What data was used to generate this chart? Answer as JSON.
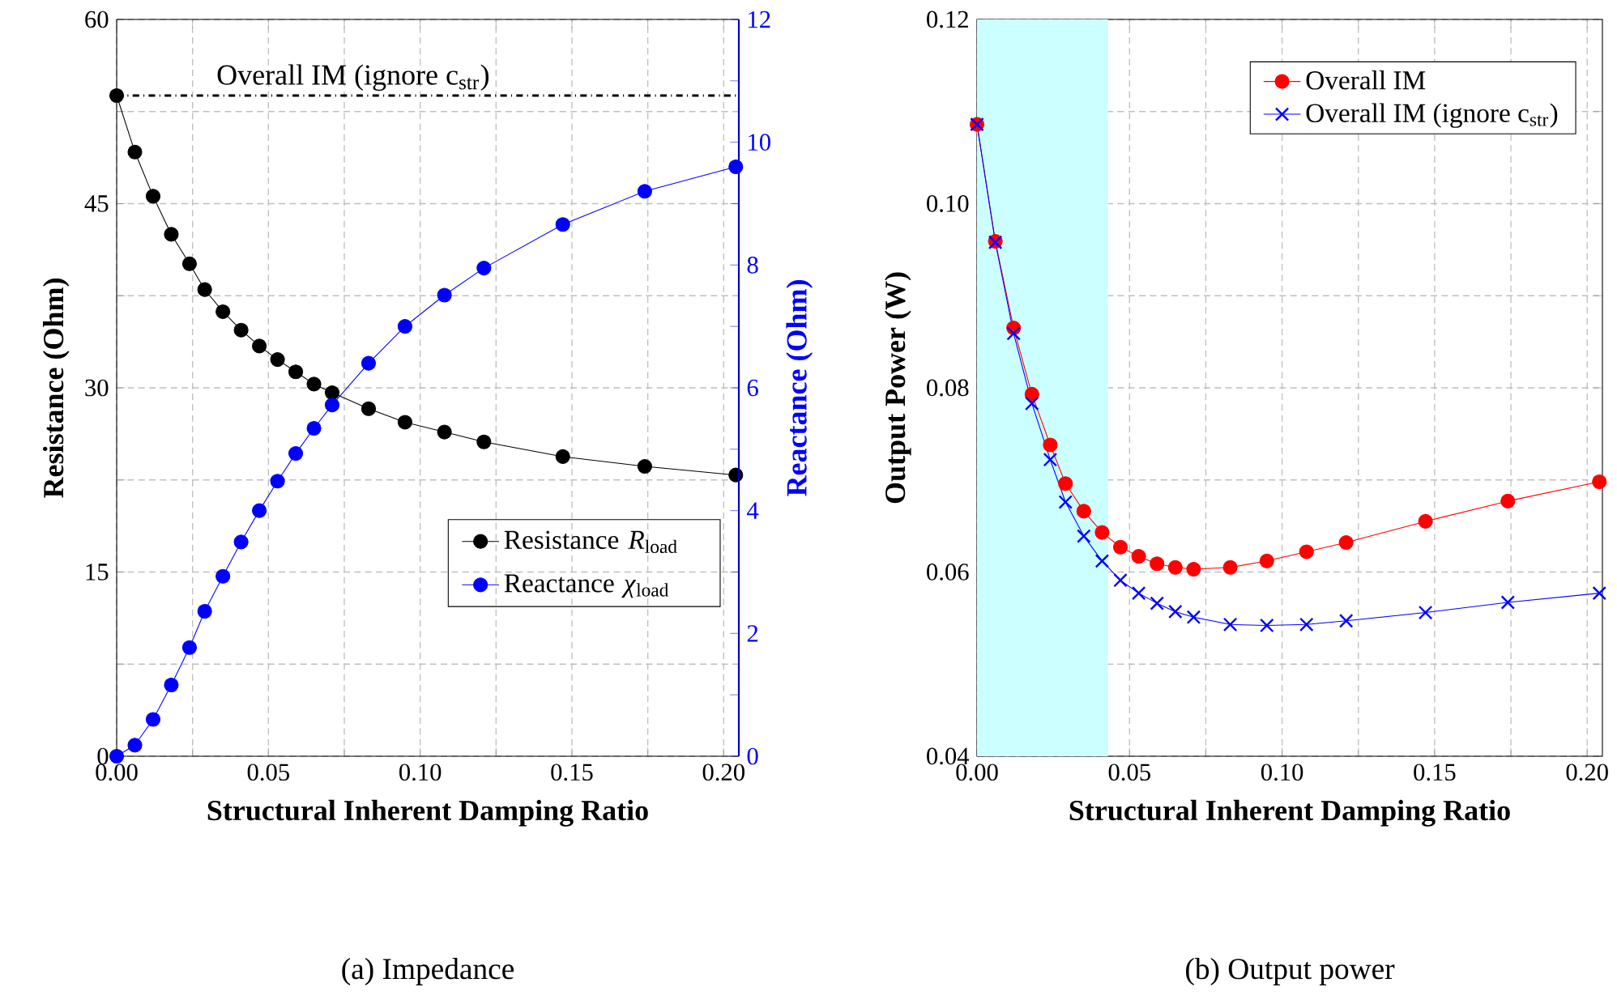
{
  "chart_data": [
    {
      "type": "line",
      "title": "(a) Impedance",
      "xlabel": "Structural Inherent Damping Ratio",
      "ylabel": "Resistance (Ohm)",
      "y2label": "Reactance (Ohm)",
      "x": [
        0,
        0.006,
        0.012,
        0.018,
        0.024,
        0.029,
        0.035,
        0.041,
        0.047,
        0.053,
        0.059,
        0.065,
        0.071,
        0.083,
        0.095,
        0.108,
        0.121,
        0.147,
        0.174,
        0.204
      ],
      "xlim": [
        0,
        0.205
      ],
      "xticks": [
        {
          "value": 0,
          "label": "0.00"
        },
        {
          "value": 0.025,
          "label": null
        },
        {
          "value": 0.05,
          "label": "0.05"
        },
        {
          "value": 0.075,
          "label": null
        },
        {
          "value": 0.1,
          "label": "0.10"
        },
        {
          "value": 0.125,
          "label": null
        },
        {
          "value": 0.15,
          "label": "0.15"
        },
        {
          "value": 0.175,
          "label": null
        },
        {
          "value": 0.2,
          "label": "0.20"
        }
      ],
      "ylim": [
        0,
        60
      ],
      "yticks": [
        0,
        {
          "value": 7.5,
          "label": null
        },
        15,
        {
          "value": 22.5,
          "label": null
        },
        30,
        {
          "value": 37.5,
          "label": null
        },
        45,
        {
          "value": 52.5,
          "label": null
        },
        60
      ],
      "y2lim": [
        0,
        12
      ],
      "y2ticks": [
        0,
        {
          "value": 1,
          "label": null
        },
        2,
        {
          "value": 3,
          "label": null
        },
        4,
        {
          "value": 5,
          "label": null
        },
        6,
        {
          "value": 7,
          "label": null
        },
        8,
        {
          "value": 9,
          "label": null
        },
        10,
        {
          "value": 11,
          "label": null
        },
        12
      ],
      "grid": true,
      "legend": "bottom right",
      "line_style": "solid",
      "series": [
        {
          "name": "Resistance *R*$_{load}$",
          "color": "#000000",
          "marker": "circle",
          "values": [
            53.8,
            49.2,
            45.6,
            42.5,
            40.1,
            38.0,
            36.2,
            34.7,
            33.4,
            32.3,
            31.3,
            30.3,
            29.6,
            28.3,
            27.2,
            26.4,
            25.6,
            24.4,
            23.6,
            22.9
          ]
        },
        {
          "name": "Reactance *χ*$_{load}$",
          "color": "#0000ff",
          "marker": "circle",
          "axis": "y2",
          "values": [
            0,
            0.18,
            0.6,
            1.16,
            1.77,
            2.36,
            2.93,
            3.49,
            4.0,
            4.48,
            4.93,
            5.34,
            5.72,
            6.4,
            7.0,
            7.51,
            7.95,
            8.66,
            9.2,
            9.6
          ]
        }
      ],
      "ref_lines": [
        {
          "axis": "y",
          "value": 53.8,
          "label": "Overall IM (ignore c$_{str}$)",
          "color": "#000000",
          "line_style": "dashdot"
        }
      ]
    },
    {
      "type": "line",
      "title": "(b) Output power",
      "xlabel": "Structural Inherent Damping Ratio",
      "ylabel": "Output Power (W)",
      "x": [
        0,
        0.006,
        0.012,
        0.018,
        0.024,
        0.029,
        0.035,
        0.041,
        0.047,
        0.053,
        0.059,
        0.065,
        0.071,
        0.083,
        0.095,
        0.108,
        0.121,
        0.147,
        0.174,
        0.204
      ],
      "xlim": [
        0,
        0.205
      ],
      "xticks": [
        {
          "value": 0,
          "label": "0.00"
        },
        {
          "value": 0.025,
          "label": null
        },
        {
          "value": 0.05,
          "label": "0.05"
        },
        {
          "value": 0.075,
          "label": null
        },
        {
          "value": 0.1,
          "label": "0.10"
        },
        {
          "value": 0.125,
          "label": null
        },
        {
          "value": 0.15,
          "label": "0.15"
        },
        {
          "value": 0.175,
          "label": null
        },
        {
          "value": 0.2,
          "label": "0.20"
        }
      ],
      "ylim": [
        0.04,
        0.12
      ],
      "yticks": [
        {
          "value": 0.04,
          "label": "0.04"
        },
        {
          "value": 0.05,
          "label": null
        },
        {
          "value": 0.06,
          "label": "0.06"
        },
        {
          "value": 0.07,
          "label": null
        },
        {
          "value": 0.08,
          "label": "0.08"
        },
        {
          "value": 0.09,
          "label": null
        },
        {
          "value": 0.1,
          "label": "0.10"
        },
        {
          "value": 0.11,
          "label": null
        },
        {
          "value": 0.12,
          "label": "0.12"
        }
      ],
      "grid": true,
      "legend": "top right",
      "line_style": "solid",
      "series": [
        {
          "name": "Overall IM",
          "color": "#ff0000",
          "marker": "circle",
          "values": [
            0.1086,
            0.0959,
            0.0865,
            0.0793,
            0.0738,
            0.0696,
            0.0666,
            0.0643,
            0.0627,
            0.0617,
            0.0609,
            0.0605,
            0.0603,
            0.0605,
            0.0612,
            0.0622,
            0.0632,
            0.0655,
            0.0677,
            0.0698
          ]
        },
        {
          "name": "Overall IM (ignore c$_{str}$)",
          "color": "#0000ff",
          "marker": "cross",
          "values": [
            0.1086,
            0.0958,
            0.0859,
            0.0783,
            0.0722,
            0.0676,
            0.0639,
            0.0612,
            0.0591,
            0.0577,
            0.0566,
            0.0557,
            0.0551,
            0.0543,
            0.0542,
            0.0543,
            0.0547,
            0.0556,
            0.0567,
            0.0577
          ]
        }
      ],
      "bands": [
        {
          "axis": "x",
          "from": 0,
          "to": 0.043,
          "color": "#ccffff"
        }
      ]
    }
  ]
}
